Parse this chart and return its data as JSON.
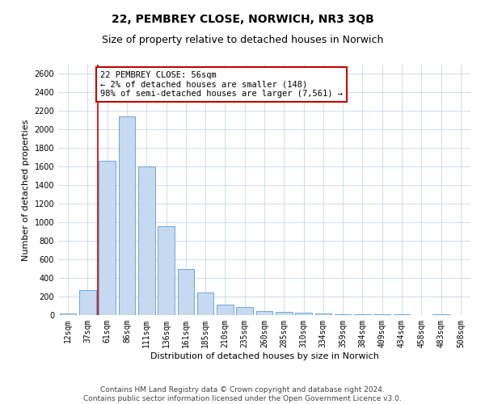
{
  "title": "22, PEMBREY CLOSE, NORWICH, NR3 3QB",
  "subtitle": "Size of property relative to detached houses in Norwich",
  "xlabel": "Distribution of detached houses by size in Norwich",
  "ylabel": "Number of detached properties",
  "categories": [
    "12sqm",
    "37sqm",
    "61sqm",
    "86sqm",
    "111sqm",
    "136sqm",
    "161sqm",
    "185sqm",
    "210sqm",
    "235sqm",
    "260sqm",
    "285sqm",
    "310sqm",
    "334sqm",
    "359sqm",
    "384sqm",
    "409sqm",
    "434sqm",
    "458sqm",
    "483sqm",
    "508sqm"
  ],
  "values": [
    20,
    270,
    1660,
    2140,
    1600,
    960,
    500,
    245,
    115,
    90,
    40,
    35,
    22,
    18,
    8,
    12,
    5,
    5,
    4,
    10,
    4
  ],
  "bar_color": "#c5d9f0",
  "bar_edge_color": "#5b9bd5",
  "annotation_text": "22 PEMBREY CLOSE: 56sqm\n← 2% of detached houses are smaller (148)\n98% of semi-detached houses are larger (7,561) →",
  "annotation_box_color": "#ffffff",
  "annotation_box_edge": "#cc0000",
  "subject_line_color": "#cc0000",
  "ylim": [
    0,
    2700
  ],
  "yticks": [
    0,
    200,
    400,
    600,
    800,
    1000,
    1200,
    1400,
    1600,
    1800,
    2000,
    2200,
    2400,
    2600
  ],
  "footer1": "Contains HM Land Registry data © Crown copyright and database right 2024.",
  "footer2": "Contains public sector information licensed under the Open Government Licence v3.0.",
  "bg_color": "#ffffff",
  "grid_color": "#c0cfe0",
  "title_fontsize": 10,
  "subtitle_fontsize": 9,
  "axis_label_fontsize": 8,
  "tick_fontsize": 7,
  "annotation_fontsize": 7.5,
  "footer_fontsize": 6.5
}
